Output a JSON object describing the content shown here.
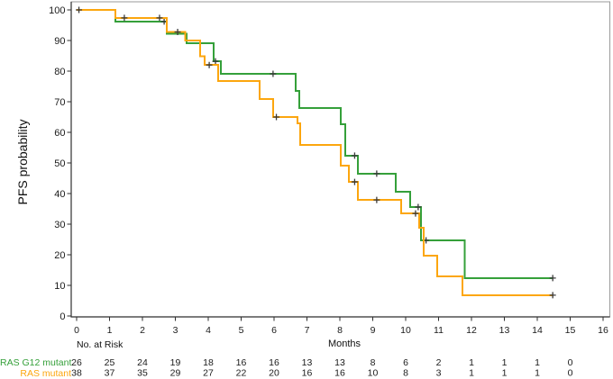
{
  "chart_data": {
    "type": "line",
    "subtype": "kaplan-meier-step",
    "title": "",
    "xlabel": "Months",
    "ylabel": "PFS probability",
    "xlim": [
      0,
      16
    ],
    "ylim": [
      0,
      100
    ],
    "xticks": [
      0,
      1,
      2,
      3,
      4,
      5,
      6,
      7,
      8,
      9,
      10,
      11,
      12,
      13,
      14,
      15,
      16
    ],
    "yticks": [
      0,
      10,
      20,
      30,
      40,
      50,
      60,
      70,
      80,
      90,
      100
    ],
    "grid": false,
    "legend_position": "risk-table-left",
    "risk_header": "No. at Risk",
    "risk_timepoints": [
      0,
      1,
      2,
      3,
      4,
      5,
      6,
      7,
      8,
      9,
      10,
      11,
      12,
      13,
      14,
      15
    ],
    "censor_color": "#3a3a3a",
    "axis_color": "#2e2e2e",
    "frame_color": "#9a9a9a",
    "series": [
      {
        "name": "RAS G12 mutant",
        "color": "#35a03a",
        "steps": [
          [
            0,
            100
          ],
          [
            1.18,
            96.2
          ],
          [
            2.74,
            92.2
          ],
          [
            3.34,
            89.1
          ],
          [
            4.16,
            83.2
          ],
          [
            4.38,
            79.1
          ],
          [
            6.66,
            73.5
          ],
          [
            6.77,
            67.9
          ],
          [
            8.03,
            62.6
          ],
          [
            8.16,
            52.4
          ],
          [
            8.55,
            46.5
          ],
          [
            9.7,
            40.6
          ],
          [
            10.14,
            35.6
          ],
          [
            10.47,
            24.7
          ],
          [
            11.8,
            12.4
          ]
        ],
        "end_month": 14.47,
        "censors": [
          [
            2.66,
            96.2
          ],
          [
            4.22,
            83.2
          ],
          [
            5.97,
            79.1
          ],
          [
            8.45,
            52.4
          ],
          [
            9.12,
            46.5
          ],
          [
            10.38,
            35.6
          ],
          [
            10.62,
            24.7
          ],
          [
            14.47,
            12.4
          ]
        ],
        "at_risk": [
          26,
          25,
          24,
          19,
          18,
          16,
          16,
          13,
          13,
          8,
          6,
          2,
          1,
          1,
          1,
          0
        ]
      },
      {
        "name": "RAS mutant",
        "color": "#fca60e",
        "steps": [
          [
            0,
            100
          ],
          [
            1.18,
            97.4
          ],
          [
            2.74,
            92.8
          ],
          [
            3.3,
            90
          ],
          [
            3.75,
            84.9
          ],
          [
            3.89,
            82
          ],
          [
            4.3,
            76.8
          ],
          [
            5.56,
            70.9
          ],
          [
            5.97,
            65
          ],
          [
            6.71,
            62.9
          ],
          [
            6.79,
            55.9
          ],
          [
            8.03,
            49.1
          ],
          [
            8.27,
            43.8
          ],
          [
            8.55,
            37.9
          ],
          [
            9.86,
            33.5
          ],
          [
            10.41,
            28.8
          ],
          [
            10.55,
            19.7
          ],
          [
            10.96,
            12.9
          ],
          [
            11.73,
            6.8
          ]
        ],
        "end_month": 14.47,
        "censors": [
          [
            0.07,
            100
          ],
          [
            1.45,
            97.4
          ],
          [
            2.52,
            97.4
          ],
          [
            3.07,
            92.8
          ],
          [
            4.03,
            82
          ],
          [
            6.07,
            65
          ],
          [
            8.45,
            43.8
          ],
          [
            9.12,
            37.9
          ],
          [
            10.3,
            33.5
          ],
          [
            14.47,
            6.8
          ]
        ],
        "at_risk": [
          38,
          37,
          35,
          29,
          27,
          22,
          20,
          16,
          16,
          10,
          8,
          3,
          1,
          1,
          1,
          0
        ]
      }
    ]
  }
}
